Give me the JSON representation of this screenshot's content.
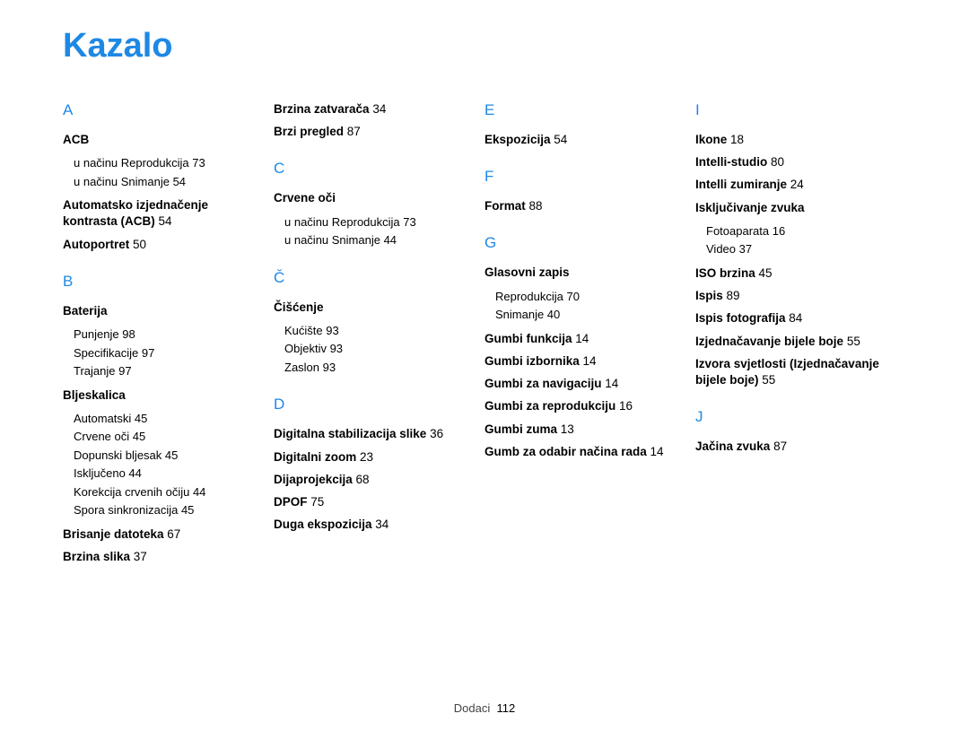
{
  "title": "Kazalo",
  "footer_label": "Dodaci",
  "footer_page": "112",
  "colors": {
    "accent": "#1e88e5",
    "text": "#000000",
    "background": "#ffffff"
  },
  "columns": [
    [
      {
        "type": "letter",
        "text": "A",
        "first": true
      },
      {
        "type": "bold",
        "text": "ACB"
      },
      {
        "type": "sub-start"
      },
      {
        "type": "sub",
        "text": "u načinu Reprodukcija  73"
      },
      {
        "type": "sub",
        "text": "u načinu Snimanje  54"
      },
      {
        "type": "sub-end"
      },
      {
        "type": "bold",
        "text": "Automatsko izjednačenje kontrasta (ACB)",
        "page": "54"
      },
      {
        "type": "bold",
        "text": "Autoportret",
        "page": "50"
      },
      {
        "type": "letter",
        "text": "B"
      },
      {
        "type": "bold",
        "text": "Baterija"
      },
      {
        "type": "sub-start"
      },
      {
        "type": "sub",
        "text": "Punjenje  98"
      },
      {
        "type": "sub",
        "text": "Specifikacije  97"
      },
      {
        "type": "sub",
        "text": "Trajanje  97"
      },
      {
        "type": "sub-end"
      },
      {
        "type": "bold",
        "text": "Bljeskalica"
      },
      {
        "type": "sub-start"
      },
      {
        "type": "sub",
        "text": "Automatski  45"
      },
      {
        "type": "sub",
        "text": "Crvene oči  45"
      },
      {
        "type": "sub",
        "text": "Dopunski bljesak  45"
      },
      {
        "type": "sub",
        "text": "Isključeno  44"
      },
      {
        "type": "sub",
        "text": "Korekcija crvenih očiju  44"
      },
      {
        "type": "sub",
        "text": "Spora sinkronizacija  45"
      },
      {
        "type": "sub-end"
      },
      {
        "type": "bold",
        "text": "Brisanje datoteka",
        "page": "67"
      },
      {
        "type": "bold",
        "text": "Brzina slika",
        "page": "37"
      }
    ],
    [
      {
        "type": "bold",
        "text": "Brzina zatvarača",
        "page": "34",
        "first": true
      },
      {
        "type": "bold",
        "text": "Brzi pregled",
        "page": "87"
      },
      {
        "type": "letter",
        "text": "C"
      },
      {
        "type": "bold",
        "text": "Crvene oči"
      },
      {
        "type": "sub-start"
      },
      {
        "type": "sub",
        "text": "u načinu Reprodukcija  73"
      },
      {
        "type": "sub",
        "text": "u načinu Snimanje  44"
      },
      {
        "type": "sub-end"
      },
      {
        "type": "letter",
        "text": "Č"
      },
      {
        "type": "bold",
        "text": "Čišćenje"
      },
      {
        "type": "sub-start"
      },
      {
        "type": "sub",
        "text": "Kućište  93"
      },
      {
        "type": "sub",
        "text": "Objektiv  93"
      },
      {
        "type": "sub",
        "text": "Zaslon  93"
      },
      {
        "type": "sub-end"
      },
      {
        "type": "letter",
        "text": "D"
      },
      {
        "type": "bold",
        "text": "Digitalna stabilizacija slike",
        "page": "36"
      },
      {
        "type": "bold",
        "text": "Digitalni zoom",
        "page": "23"
      },
      {
        "type": "bold",
        "text": "Dijaprojekcija",
        "page": "68"
      },
      {
        "type": "bold",
        "text": "DPOF",
        "page": "75"
      },
      {
        "type": "bold",
        "text": "Duga ekspozicija",
        "page": "34"
      }
    ],
    [
      {
        "type": "letter",
        "text": "E",
        "first": true
      },
      {
        "type": "bold",
        "text": "Ekspozicija",
        "page": "54"
      },
      {
        "type": "letter",
        "text": "F"
      },
      {
        "type": "bold",
        "text": "Format",
        "page": "88"
      },
      {
        "type": "letter",
        "text": "G"
      },
      {
        "type": "bold",
        "text": "Glasovni zapis"
      },
      {
        "type": "sub-start"
      },
      {
        "type": "sub",
        "text": "Reprodukcija  70"
      },
      {
        "type": "sub",
        "text": "Snimanje  40"
      },
      {
        "type": "sub-end"
      },
      {
        "type": "bold",
        "text": "Gumbi funkcija",
        "page": "14"
      },
      {
        "type": "bold",
        "text": "Gumbi izbornika",
        "page": "14"
      },
      {
        "type": "bold",
        "text": "Gumbi za navigaciju",
        "page": "14"
      },
      {
        "type": "bold",
        "text": "Gumbi za reprodukciju",
        "page": "16"
      },
      {
        "type": "bold",
        "text": "Gumbi zuma",
        "page": "13"
      },
      {
        "type": "bold",
        "text": "Gumb za odabir načina rada",
        "page": "14"
      }
    ],
    [
      {
        "type": "letter",
        "text": "I",
        "first": true
      },
      {
        "type": "bold",
        "text": "Ikone",
        "page": "18"
      },
      {
        "type": "bold",
        "text": "Intelli-studio",
        "page": "80"
      },
      {
        "type": "bold",
        "text": "Intelli zumiranje",
        "page": "24"
      },
      {
        "type": "bold",
        "text": "Isključivanje zvuka"
      },
      {
        "type": "sub-start"
      },
      {
        "type": "sub",
        "text": "Fotoaparata  16"
      },
      {
        "type": "sub",
        "text": "Video  37"
      },
      {
        "type": "sub-end"
      },
      {
        "type": "bold",
        "text": "ISO brzina",
        "page": "45"
      },
      {
        "type": "bold",
        "text": "Ispis",
        "page": "89"
      },
      {
        "type": "bold",
        "text": "Ispis fotografija",
        "page": "84"
      },
      {
        "type": "bold",
        "text": "Izjednačavanje bijele boje",
        "page": "55"
      },
      {
        "type": "bold",
        "text": "Izvora svjetlosti (Izjednačavanje bijele boje)",
        "page": "55"
      },
      {
        "type": "letter",
        "text": "J"
      },
      {
        "type": "bold",
        "text": "Jačina zvuka",
        "page": "87"
      }
    ]
  ]
}
